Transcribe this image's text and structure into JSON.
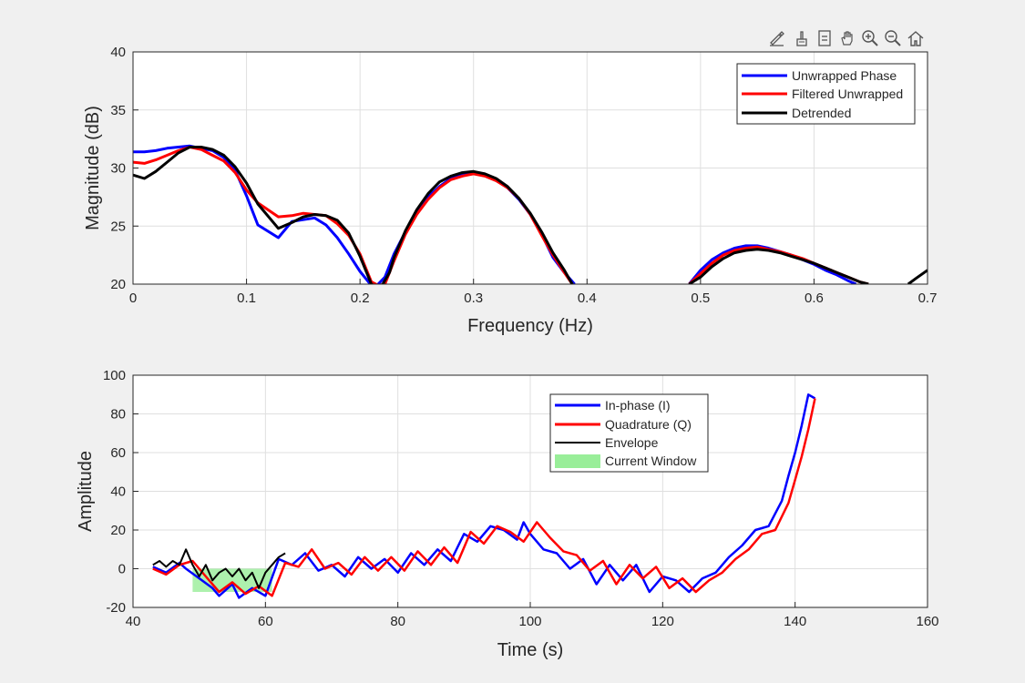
{
  "toolbar": {
    "icons": [
      "edit-plot-icon",
      "brush-data-icon",
      "data-tips-icon",
      "pan-hand-icon",
      "zoom-in-icon",
      "zoom-out-icon",
      "restore-view-home-icon"
    ]
  },
  "chart_data": [
    {
      "type": "line",
      "title": "",
      "xlabel": "Frequency (Hz)",
      "ylabel": "Magnitude (dB)",
      "xlim": [
        0,
        0.7
      ],
      "ylim": [
        20,
        40
      ],
      "xticks": [
        0,
        0.1,
        0.2,
        0.3,
        0.4,
        0.5,
        0.6,
        0.7
      ],
      "xtick_labels": [
        "0",
        "0.1",
        "0.2",
        "0.3",
        "0.4",
        "0.5",
        "0.6",
        "0.7"
      ],
      "yticks": [
        20,
        25,
        30,
        35,
        40
      ],
      "ytick_labels": [
        "20",
        "25",
        "30",
        "35",
        "40"
      ],
      "grid": true,
      "legend_position": "top-right",
      "series": [
        {
          "name": "Unwrapped Phase",
          "color": "#0000ff",
          "x": [
            0,
            0.01,
            0.02,
            0.03,
            0.04,
            0.05,
            0.06,
            0.07,
            0.08,
            0.09,
            0.1,
            0.11,
            0.128,
            0.14,
            0.16,
            0.17,
            0.18,
            0.19,
            0.2,
            0.209,
            0.214,
            0.222,
            0.23,
            0.24,
            0.25,
            0.26,
            0.27,
            0.28,
            0.29,
            0.3,
            0.31,
            0.32,
            0.33,
            0.34,
            0.35,
            0.36,
            0.37,
            0.38,
            0.389
          ],
          "y": [
            31.4,
            31.4,
            31.5,
            31.7,
            31.8,
            31.9,
            31.7,
            31.5,
            30.9,
            29.8,
            27.6,
            25.1,
            24.0,
            25.4,
            25.7,
            25.1,
            24.0,
            22.6,
            21.1,
            20.0,
            19.8,
            20.6,
            22.6,
            24.5,
            26.2,
            27.5,
            28.4,
            29.1,
            29.5,
            29.6,
            29.4,
            29.0,
            28.3,
            27.3,
            26.0,
            24.3,
            22.3,
            21.0,
            20.0
          ]
        },
        {
          "name": "Filtered Unwrapped",
          "color": "#ff0000",
          "x": [
            0,
            0.01,
            0.02,
            0.03,
            0.04,
            0.05,
            0.06,
            0.07,
            0.08,
            0.09,
            0.1,
            0.11,
            0.128,
            0.14,
            0.15,
            0.16,
            0.17,
            0.18,
            0.19,
            0.2,
            0.21,
            0.216,
            0.222,
            0.23,
            0.24,
            0.25,
            0.26,
            0.27,
            0.28,
            0.29,
            0.3,
            0.31,
            0.32,
            0.33,
            0.34,
            0.35,
            0.36,
            0.37,
            0.38,
            0.387
          ],
          "y": [
            30.5,
            30.4,
            30.7,
            31.1,
            31.5,
            31.8,
            31.6,
            31.1,
            30.6,
            29.6,
            28.1,
            27.0,
            25.8,
            25.9,
            26.1,
            26.0,
            25.9,
            25.2,
            24.2,
            22.6,
            20.2,
            19.9,
            20.0,
            22.0,
            24.3,
            26.0,
            27.3,
            28.3,
            29.0,
            29.3,
            29.5,
            29.3,
            28.9,
            28.3,
            27.4,
            26.0,
            24.2,
            22.5,
            21.0,
            20.0
          ]
        },
        {
          "name": "Detrended",
          "color": "#000000",
          "x": [
            0,
            0.01,
            0.02,
            0.03,
            0.04,
            0.05,
            0.06,
            0.07,
            0.08,
            0.09,
            0.1,
            0.11,
            0.128,
            0.14,
            0.15,
            0.16,
            0.17,
            0.18,
            0.19,
            0.2,
            0.21,
            0.216,
            0.22,
            0.226,
            0.23,
            0.24,
            0.25,
            0.26,
            0.27,
            0.28,
            0.29,
            0.3,
            0.31,
            0.32,
            0.33,
            0.34,
            0.35,
            0.36,
            0.37,
            0.38,
            0.387
          ],
          "y": [
            29.4,
            29.1,
            29.7,
            30.5,
            31.3,
            31.8,
            31.8,
            31.6,
            31.1,
            30.1,
            28.7,
            26.9,
            24.8,
            25.3,
            25.8,
            26.0,
            25.9,
            25.5,
            24.4,
            22.4,
            20.0,
            19.7,
            20.0,
            21.0,
            22.3,
            24.6,
            26.4,
            27.8,
            28.8,
            29.3,
            29.6,
            29.7,
            29.5,
            29.1,
            28.4,
            27.4,
            26.1,
            24.5,
            22.7,
            21.2,
            20.0
          ]
        }
      ],
      "extra_segments": [
        {
          "series": "Unwrapped Phase",
          "x": [
            0.49,
            0.5,
            0.51,
            0.52,
            0.53,
            0.54,
            0.55,
            0.56,
            0.57,
            0.58,
            0.59,
            0.6,
            0.61,
            0.62,
            0.63,
            0.637
          ],
          "y": [
            20.0,
            21.2,
            22.1,
            22.7,
            23.1,
            23.3,
            23.3,
            23.1,
            22.8,
            22.5,
            22.1,
            21.7,
            21.2,
            20.8,
            20.3,
            20.0
          ]
        },
        {
          "series": "Filtered Unwrapped",
          "x": [
            0.49,
            0.5,
            0.51,
            0.52,
            0.53,
            0.54,
            0.55,
            0.56,
            0.57,
            0.58,
            0.59,
            0.6,
            0.61,
            0.62,
            0.63,
            0.64,
            0.648
          ],
          "y": [
            20.0,
            20.9,
            21.8,
            22.5,
            22.9,
            23.1,
            23.2,
            23.0,
            22.8,
            22.5,
            22.2,
            21.8,
            21.4,
            21.0,
            20.6,
            20.2,
            20.0
          ]
        },
        {
          "series": "Detrended",
          "x": [
            0.49,
            0.5,
            0.51,
            0.52,
            0.53,
            0.54,
            0.55,
            0.56,
            0.57,
            0.58,
            0.59,
            0.6,
            0.61,
            0.62,
            0.63,
            0.64,
            0.648
          ],
          "y": [
            20.0,
            20.6,
            21.5,
            22.2,
            22.7,
            22.9,
            23.0,
            22.9,
            22.7,
            22.4,
            22.1,
            21.8,
            21.4,
            21.0,
            20.6,
            20.2,
            20.0
          ]
        },
        {
          "series": "Detrended",
          "x": [
            0.683,
            0.69,
            0.7
          ],
          "y": [
            20.0,
            20.5,
            21.2
          ]
        }
      ]
    },
    {
      "type": "line",
      "title": "",
      "xlabel": "Time (s)",
      "ylabel": "Amplitude",
      "xlim": [
        40,
        160
      ],
      "ylim": [
        -20,
        100
      ],
      "xticks": [
        40,
        60,
        80,
        100,
        120,
        140,
        160
      ],
      "xtick_labels": [
        "40",
        "60",
        "80",
        "100",
        "120",
        "140",
        "160"
      ],
      "yticks": [
        -20,
        0,
        20,
        40,
        60,
        80,
        100
      ],
      "ytick_labels": [
        "-20",
        "0",
        "20",
        "40",
        "60",
        "80",
        "100"
      ],
      "grid": true,
      "legend_position": "top-center",
      "current_window": {
        "x": [
          49,
          61
        ],
        "y": [
          -12,
          0
        ],
        "color": "#99ee99",
        "label": "Current Window"
      },
      "series": [
        {
          "name": "In-phase (I)",
          "color": "#0000ff",
          "x": [
            43,
            45,
            47,
            48,
            50,
            52,
            53,
            55,
            56,
            58,
            60,
            62,
            64,
            66,
            68,
            70,
            72,
            74,
            76,
            78,
            80,
            82,
            84,
            86,
            88,
            90,
            92,
            94,
            96,
            98,
            99,
            100,
            102,
            104,
            106,
            108,
            110,
            112,
            114,
            116,
            118,
            120,
            122,
            124,
            126,
            128,
            130,
            132,
            134,
            136,
            138,
            139,
            140,
            141,
            142,
            143
          ],
          "y": [
            1,
            -2,
            3,
            0,
            -5,
            -10,
            -14,
            -8,
            -15,
            -10,
            -14,
            5,
            2,
            8,
            -1,
            2,
            -4,
            6,
            0,
            5,
            -2,
            8,
            2,
            10,
            4,
            18,
            14,
            22,
            20,
            15,
            24,
            18,
            10,
            8,
            0,
            5,
            -8,
            2,
            -6,
            2,
            -12,
            -4,
            -6,
            -12,
            -5,
            -2,
            6,
            12,
            20,
            22,
            35,
            48,
            60,
            74,
            90,
            88
          ]
        },
        {
          "name": "Quadrature (Q)",
          "color": "#ff0000",
          "x": [
            43,
            45,
            47,
            49,
            51,
            53,
            55,
            57,
            59,
            61,
            63,
            65,
            67,
            69,
            71,
            73,
            75,
            77,
            79,
            81,
            83,
            85,
            87,
            89,
            91,
            93,
            95,
            97,
            99,
            101,
            103,
            105,
            107,
            109,
            111,
            113,
            115,
            117,
            119,
            121,
            123,
            125,
            127,
            129,
            131,
            133,
            135,
            137,
            139,
            140,
            141,
            142,
            143
          ],
          "y": [
            0,
            -3,
            2,
            4,
            -4,
            -12,
            -7,
            -13,
            -9,
            -14,
            3,
            1,
            10,
            0,
            3,
            -3,
            6,
            -1,
            6,
            -1,
            9,
            2,
            11,
            3,
            19,
            13,
            22,
            19,
            14,
            24,
            16,
            9,
            7,
            -1,
            4,
            -8,
            2,
            -5,
            1,
            -10,
            -5,
            -12,
            -6,
            -2,
            5,
            10,
            18,
            20,
            34,
            46,
            58,
            72,
            88
          ]
        },
        {
          "name": "Envelope",
          "color": "#000000",
          "x": [
            43,
            44,
            45,
            46,
            47,
            48,
            49,
            50,
            51,
            52,
            53,
            54,
            55,
            56,
            57,
            58,
            59,
            60,
            61,
            62,
            63
          ],
          "y": [
            2,
            4,
            1,
            4,
            2,
            10,
            2,
            -4,
            2,
            -6,
            -2,
            0,
            -4,
            0,
            -6,
            -2,
            -10,
            -2,
            2,
            6,
            8
          ]
        }
      ]
    }
  ]
}
